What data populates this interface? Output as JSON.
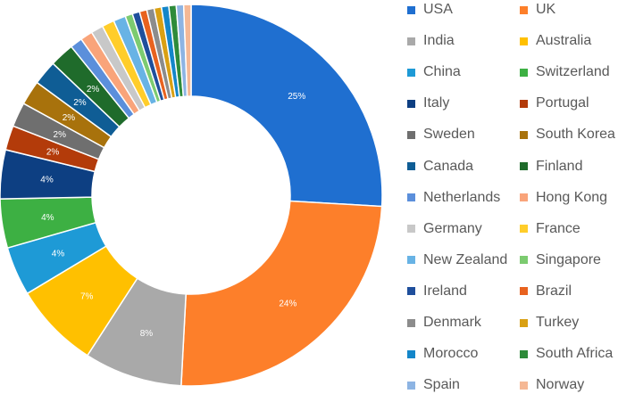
{
  "chart_data": {
    "type": "pie",
    "donut": true,
    "legend_position": "right",
    "slices": [
      {
        "label": "USA",
        "value": 25,
        "color": "#1f6fd0",
        "show_label": true
      },
      {
        "label": "UK",
        "value": 24,
        "color": "#fd7f2a",
        "show_label": true
      },
      {
        "label": "India",
        "value": 8,
        "color": "#a9a9a9",
        "show_label": true
      },
      {
        "label": "Australia",
        "value": 7,
        "color": "#ffc000",
        "show_label": true
      },
      {
        "label": "China",
        "value": 4,
        "color": "#1e9ad6",
        "show_label": true
      },
      {
        "label": "Switzerland",
        "value": 4,
        "color": "#3db043",
        "show_label": true
      },
      {
        "label": "Italy",
        "value": 4,
        "color": "#0d3f82",
        "show_label": true
      },
      {
        "label": "Portugal",
        "value": 2,
        "color": "#b33b0a",
        "show_label": true
      },
      {
        "label": "Sweden",
        "value": 2,
        "color": "#6f6f6f",
        "show_label": true
      },
      {
        "label": "South Korea",
        "value": 2,
        "color": "#a8720c",
        "show_label": true
      },
      {
        "label": "Canada",
        "value": 2,
        "color": "#0f5d95",
        "show_label": true
      },
      {
        "label": "Finland",
        "value": 2,
        "color": "#1f6b2b",
        "show_label": true
      },
      {
        "label": "Netherlands",
        "value": 1,
        "color": "#5b8fdb",
        "show_label": false
      },
      {
        "label": "Hong Kong",
        "value": 1,
        "color": "#f9a47a",
        "show_label": false
      },
      {
        "label": "Germany",
        "value": 1,
        "color": "#c8c8c8",
        "show_label": false
      },
      {
        "label": "France",
        "value": 1,
        "color": "#ffcd2a",
        "show_label": false
      },
      {
        "label": "New Zealand",
        "value": 1,
        "color": "#68b3e5",
        "show_label": false
      },
      {
        "label": "Singapore",
        "value": 0.6,
        "color": "#7ccb70",
        "show_label": false
      },
      {
        "label": "Ireland",
        "value": 0.6,
        "color": "#1f4f9c",
        "show_label": false
      },
      {
        "label": "Brazil",
        "value": 0.6,
        "color": "#e8621f",
        "show_label": false
      },
      {
        "label": "Denmark",
        "value": 0.6,
        "color": "#8c8c8c",
        "show_label": false
      },
      {
        "label": "Turkey",
        "value": 0.6,
        "color": "#d9a013",
        "show_label": false
      },
      {
        "label": "Morocco",
        "value": 0.6,
        "color": "#1486c9",
        "show_label": false
      },
      {
        "label": "South Africa",
        "value": 0.6,
        "color": "#2e8b3a",
        "show_label": false
      },
      {
        "label": "Spain",
        "value": 0.6,
        "color": "#8db4e3",
        "show_label": false
      },
      {
        "label": "Norway",
        "value": 0.6,
        "color": "#f5b895",
        "show_label": false
      }
    ],
    "data_labels": [
      "25%",
      "24%",
      "8%",
      "7%",
      "4%",
      "4%",
      "4%",
      "2%",
      "2%",
      "2%",
      "2%",
      "2%"
    ]
  }
}
